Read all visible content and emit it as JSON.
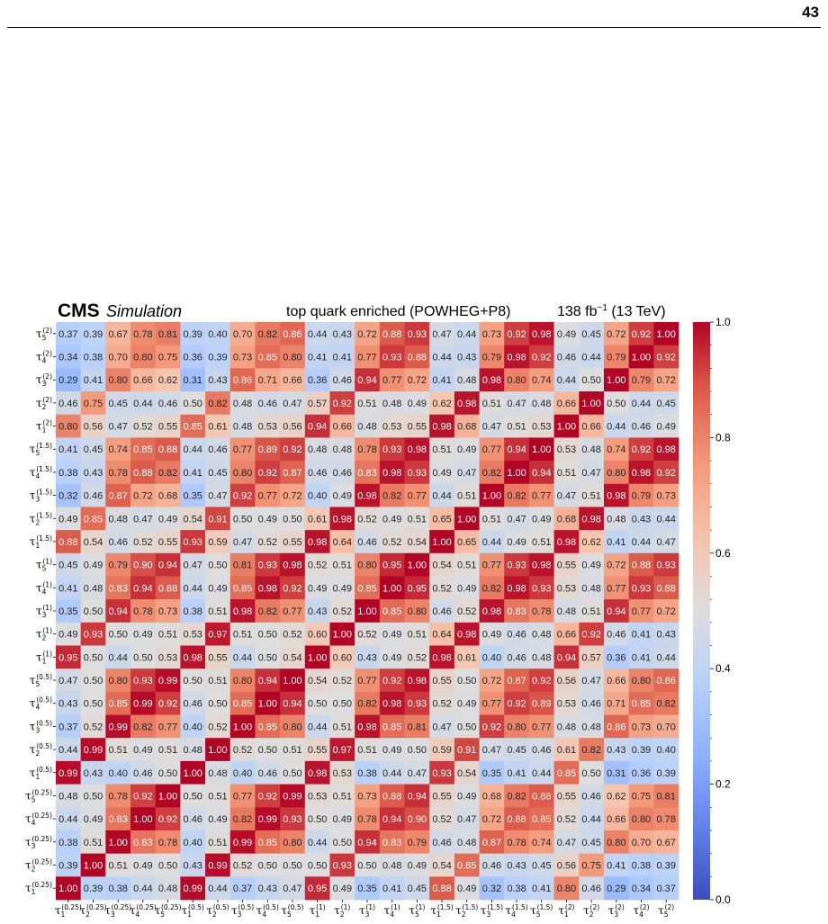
{
  "page": {
    "number": "43"
  },
  "chart_data": {
    "type": "heatmap",
    "experiment": "CMS",
    "simulation_label": "Simulation",
    "title": "top quark enriched (POWHEG+P8)",
    "lumi_prefix": "138 fb",
    "lumi_exp": "−1",
    "lumi_suffix": " (13 TeV)",
    "x_labels": [
      {
        "base": "τ",
        "sub": "1",
        "sup": "(0.25)"
      },
      {
        "base": "τ",
        "sub": "2",
        "sup": "(0.25)"
      },
      {
        "base": "τ",
        "sub": "3",
        "sup": "(0.25)"
      },
      {
        "base": "τ",
        "sub": "4",
        "sup": "(0.25)"
      },
      {
        "base": "τ",
        "sub": "5",
        "sup": "(0.25)"
      },
      {
        "base": "τ",
        "sub": "1",
        "sup": "(0.5)"
      },
      {
        "base": "τ",
        "sub": "2",
        "sup": "(0.5)"
      },
      {
        "base": "τ",
        "sub": "3",
        "sup": "(0.5)"
      },
      {
        "base": "τ",
        "sub": "4",
        "sup": "(0.5)"
      },
      {
        "base": "τ",
        "sub": "5",
        "sup": "(0.5)"
      },
      {
        "base": "τ",
        "sub": "1",
        "sup": "(1)"
      },
      {
        "base": "τ",
        "sub": "2",
        "sup": "(1)"
      },
      {
        "base": "τ",
        "sub": "3",
        "sup": "(1)"
      },
      {
        "base": "τ",
        "sub": "4",
        "sup": "(1)"
      },
      {
        "base": "τ",
        "sub": "5",
        "sup": "(1)"
      },
      {
        "base": "τ",
        "sub": "1",
        "sup": "(1.5)"
      },
      {
        "base": "τ",
        "sub": "2",
        "sup": "(1.5)"
      },
      {
        "base": "τ",
        "sub": "3",
        "sup": "(1.5)"
      },
      {
        "base": "τ",
        "sub": "4",
        "sup": "(1.5)"
      },
      {
        "base": "τ",
        "sub": "5",
        "sup": "(1.5)"
      },
      {
        "base": "τ",
        "sub": "1",
        "sup": "(2)"
      },
      {
        "base": "τ",
        "sub": "2",
        "sup": "(2)"
      },
      {
        "base": "τ",
        "sub": "3",
        "sup": "(2)"
      },
      {
        "base": "τ",
        "sub": "4",
        "sup": "(2)"
      },
      {
        "base": "τ",
        "sub": "5",
        "sup": "(2)"
      }
    ],
    "y_labels": [
      {
        "base": "τ",
        "sub": "5",
        "sup": "(2)"
      },
      {
        "base": "τ",
        "sub": "4",
        "sup": "(2)"
      },
      {
        "base": "τ",
        "sub": "3",
        "sup": "(2)"
      },
      {
        "base": "τ",
        "sub": "2",
        "sup": "(2)"
      },
      {
        "base": "τ",
        "sub": "1",
        "sup": "(2)"
      },
      {
        "base": "τ",
        "sub": "5",
        "sup": "(1.5)"
      },
      {
        "base": "τ",
        "sub": "4",
        "sup": "(1.5)"
      },
      {
        "base": "τ",
        "sub": "3",
        "sup": "(1.5)"
      },
      {
        "base": "τ",
        "sub": "2",
        "sup": "(1.5)"
      },
      {
        "base": "τ",
        "sub": "1",
        "sup": "(1.5)"
      },
      {
        "base": "τ",
        "sub": "5",
        "sup": "(1)"
      },
      {
        "base": "τ",
        "sub": "4",
        "sup": "(1)"
      },
      {
        "base": "τ",
        "sub": "3",
        "sup": "(1)"
      },
      {
        "base": "τ",
        "sub": "2",
        "sup": "(1)"
      },
      {
        "base": "τ",
        "sub": "1",
        "sup": "(1)"
      },
      {
        "base": "τ",
        "sub": "5",
        "sup": "(0.5)"
      },
      {
        "base": "τ",
        "sub": "4",
        "sup": "(0.5)"
      },
      {
        "base": "τ",
        "sub": "3",
        "sup": "(0.5)"
      },
      {
        "base": "τ",
        "sub": "2",
        "sup": "(0.5)"
      },
      {
        "base": "τ",
        "sub": "1",
        "sup": "(0.5)"
      },
      {
        "base": "τ",
        "sub": "5",
        "sup": "(0.25)"
      },
      {
        "base": "τ",
        "sub": "4",
        "sup": "(0.25)"
      },
      {
        "base": "τ",
        "sub": "3",
        "sup": "(0.25)"
      },
      {
        "base": "τ",
        "sub": "2",
        "sup": "(0.25)"
      },
      {
        "base": "τ",
        "sub": "1",
        "sup": "(0.25)"
      }
    ],
    "values": [
      [
        0.37,
        0.39,
        0.67,
        0.78,
        0.81,
        0.39,
        0.4,
        0.7,
        0.82,
        0.86,
        0.44,
        0.43,
        0.72,
        0.88,
        0.93,
        0.47,
        0.44,
        0.73,
        0.92,
        0.98,
        0.49,
        0.45,
        0.72,
        0.92,
        1.0
      ],
      [
        0.34,
        0.38,
        0.7,
        0.8,
        0.75,
        0.36,
        0.39,
        0.73,
        0.85,
        0.8,
        0.41,
        0.41,
        0.77,
        0.93,
        0.88,
        0.44,
        0.43,
        0.79,
        0.98,
        0.92,
        0.46,
        0.44,
        0.79,
        1.0,
        0.92
      ],
      [
        0.29,
        0.41,
        0.8,
        0.66,
        0.62,
        0.31,
        0.43,
        0.86,
        0.71,
        0.66,
        0.36,
        0.46,
        0.94,
        0.77,
        0.72,
        0.41,
        0.48,
        0.98,
        0.8,
        0.74,
        0.44,
        0.5,
        1.0,
        0.79,
        0.72
      ],
      [
        0.46,
        0.75,
        0.45,
        0.44,
        0.46,
        0.5,
        0.82,
        0.48,
        0.46,
        0.47,
        0.57,
        0.92,
        0.51,
        0.48,
        0.49,
        0.62,
        0.98,
        0.51,
        0.47,
        0.48,
        0.66,
        1.0,
        0.5,
        0.44,
        0.45
      ],
      [
        0.8,
        0.56,
        0.47,
        0.52,
        0.55,
        0.85,
        0.61,
        0.48,
        0.53,
        0.56,
        0.94,
        0.66,
        0.48,
        0.53,
        0.55,
        0.98,
        0.68,
        0.47,
        0.51,
        0.53,
        1.0,
        0.66,
        0.44,
        0.46,
        0.49
      ],
      [
        0.41,
        0.45,
        0.74,
        0.85,
        0.88,
        0.44,
        0.46,
        0.77,
        0.89,
        0.92,
        0.48,
        0.48,
        0.78,
        0.93,
        0.98,
        0.51,
        0.49,
        0.77,
        0.94,
        1.0,
        0.53,
        0.48,
        0.74,
        0.92,
        0.98
      ],
      [
        0.38,
        0.43,
        0.78,
        0.88,
        0.82,
        0.41,
        0.45,
        0.8,
        0.92,
        0.87,
        0.46,
        0.46,
        0.83,
        0.98,
        0.93,
        0.49,
        0.47,
        0.82,
        1.0,
        0.94,
        0.51,
        0.47,
        0.8,
        0.98,
        0.92
      ],
      [
        0.32,
        0.46,
        0.87,
        0.72,
        0.68,
        0.35,
        0.47,
        0.92,
        0.77,
        0.72,
        0.4,
        0.49,
        0.98,
        0.82,
        0.77,
        0.44,
        0.51,
        1.0,
        0.82,
        0.77,
        0.47,
        0.51,
        0.98,
        0.79,
        0.73
      ],
      [
        0.49,
        0.85,
        0.48,
        0.47,
        0.49,
        0.54,
        0.91,
        0.5,
        0.49,
        0.5,
        0.61,
        0.98,
        0.52,
        0.49,
        0.51,
        0.65,
        1.0,
        0.51,
        0.47,
        0.49,
        0.68,
        0.98,
        0.48,
        0.43,
        0.44
      ],
      [
        0.88,
        0.54,
        0.46,
        0.52,
        0.55,
        0.93,
        0.59,
        0.47,
        0.52,
        0.55,
        0.98,
        0.64,
        0.46,
        0.52,
        0.54,
        1.0,
        0.65,
        0.44,
        0.49,
        0.51,
        0.98,
        0.62,
        0.41,
        0.44,
        0.47
      ],
      [
        0.45,
        0.49,
        0.79,
        0.9,
        0.94,
        0.47,
        0.5,
        0.81,
        0.93,
        0.98,
        0.52,
        0.51,
        0.8,
        0.95,
        1.0,
        0.54,
        0.51,
        0.77,
        0.93,
        0.98,
        0.55,
        0.49,
        0.72,
        0.88,
        0.93
      ],
      [
        0.41,
        0.48,
        0.83,
        0.94,
        0.88,
        0.44,
        0.49,
        0.85,
        0.98,
        0.92,
        0.49,
        0.49,
        0.85,
        1.0,
        0.95,
        0.52,
        0.49,
        0.82,
        0.98,
        0.93,
        0.53,
        0.48,
        0.77,
        0.93,
        0.88
      ],
      [
        0.35,
        0.5,
        0.94,
        0.78,
        0.73,
        0.38,
        0.51,
        0.98,
        0.82,
        0.77,
        0.43,
        0.52,
        1.0,
        0.85,
        0.8,
        0.46,
        0.52,
        0.98,
        0.83,
        0.78,
        0.48,
        0.51,
        0.94,
        0.77,
        0.72
      ],
      [
        0.49,
        0.93,
        0.5,
        0.49,
        0.51,
        0.53,
        0.97,
        0.51,
        0.5,
        0.52,
        0.6,
        1.0,
        0.52,
        0.49,
        0.51,
        0.64,
        0.98,
        0.49,
        0.46,
        0.48,
        0.66,
        0.92,
        0.46,
        0.41,
        0.43
      ],
      [
        0.95,
        0.5,
        0.44,
        0.5,
        0.53,
        0.98,
        0.55,
        0.44,
        0.5,
        0.54,
        1.0,
        0.6,
        0.43,
        0.49,
        0.52,
        0.98,
        0.61,
        0.4,
        0.46,
        0.48,
        0.94,
        0.57,
        0.36,
        0.41,
        0.44
      ],
      [
        0.47,
        0.5,
        0.8,
        0.93,
        0.99,
        0.5,
        0.51,
        0.8,
        0.94,
        1.0,
        0.54,
        0.52,
        0.77,
        0.92,
        0.98,
        0.55,
        0.5,
        0.72,
        0.87,
        0.92,
        0.56,
        0.47,
        0.66,
        0.8,
        0.86
      ],
      [
        0.43,
        0.5,
        0.85,
        0.99,
        0.92,
        0.46,
        0.5,
        0.85,
        1.0,
        0.94,
        0.5,
        0.5,
        0.82,
        0.98,
        0.93,
        0.52,
        0.49,
        0.77,
        0.92,
        0.89,
        0.53,
        0.46,
        0.71,
        0.85,
        0.82
      ],
      [
        0.37,
        0.52,
        0.99,
        0.82,
        0.77,
        0.4,
        0.52,
        1.0,
        0.85,
        0.8,
        0.44,
        0.51,
        0.98,
        0.85,
        0.81,
        0.47,
        0.5,
        0.92,
        0.8,
        0.77,
        0.48,
        0.48,
        0.86,
        0.73,
        0.7
      ],
      [
        0.44,
        0.99,
        0.51,
        0.49,
        0.51,
        0.48,
        1.0,
        0.52,
        0.5,
        0.51,
        0.55,
        0.97,
        0.51,
        0.49,
        0.5,
        0.59,
        0.91,
        0.47,
        0.45,
        0.46,
        0.61,
        0.82,
        0.43,
        0.39,
        0.4
      ],
      [
        0.99,
        0.43,
        0.4,
        0.46,
        0.5,
        1.0,
        0.48,
        0.4,
        0.46,
        0.5,
        0.98,
        0.53,
        0.38,
        0.44,
        0.47,
        0.93,
        0.54,
        0.35,
        0.41,
        0.44,
        0.85,
        0.5,
        0.31,
        0.36,
        0.39
      ],
      [
        0.48,
        0.5,
        0.78,
        0.92,
        1.0,
        0.5,
        0.51,
        0.77,
        0.92,
        0.99,
        0.53,
        0.51,
        0.73,
        0.88,
        0.94,
        0.55,
        0.49,
        0.68,
        0.82,
        0.88,
        0.55,
        0.46,
        0.62,
        0.75,
        0.81
      ],
      [
        0.44,
        0.49,
        0.83,
        1.0,
        0.92,
        0.46,
        0.49,
        0.82,
        0.99,
        0.93,
        0.5,
        0.49,
        0.78,
        0.94,
        0.9,
        0.52,
        0.47,
        0.72,
        0.88,
        0.85,
        0.52,
        0.44,
        0.66,
        0.8,
        0.78
      ],
      [
        0.38,
        0.51,
        1.0,
        0.83,
        0.78,
        0.4,
        0.51,
        0.99,
        0.85,
        0.8,
        0.44,
        0.5,
        0.94,
        0.83,
        0.79,
        0.46,
        0.48,
        0.87,
        0.78,
        0.74,
        0.47,
        0.45,
        0.8,
        0.7,
        0.67
      ],
      [
        0.39,
        1.0,
        0.51,
        0.49,
        0.5,
        0.43,
        0.99,
        0.52,
        0.5,
        0.5,
        0.5,
        0.93,
        0.5,
        0.48,
        0.49,
        0.54,
        0.85,
        0.46,
        0.43,
        0.45,
        0.56,
        0.75,
        0.41,
        0.38,
        0.39
      ],
      [
        1.0,
        0.39,
        0.38,
        0.44,
        0.48,
        0.99,
        0.44,
        0.37,
        0.43,
        0.47,
        0.95,
        0.49,
        0.35,
        0.41,
        0.45,
        0.88,
        0.49,
        0.32,
        0.38,
        0.41,
        0.8,
        0.46,
        0.29,
        0.34,
        0.37
      ]
    ],
    "colorbar": {
      "range": [
        0.0,
        1.0
      ],
      "ticks": [
        "0.0",
        "0.2",
        "0.4",
        "0.6",
        "0.8",
        "1.0"
      ],
      "colormap": "coolwarm"
    }
  }
}
